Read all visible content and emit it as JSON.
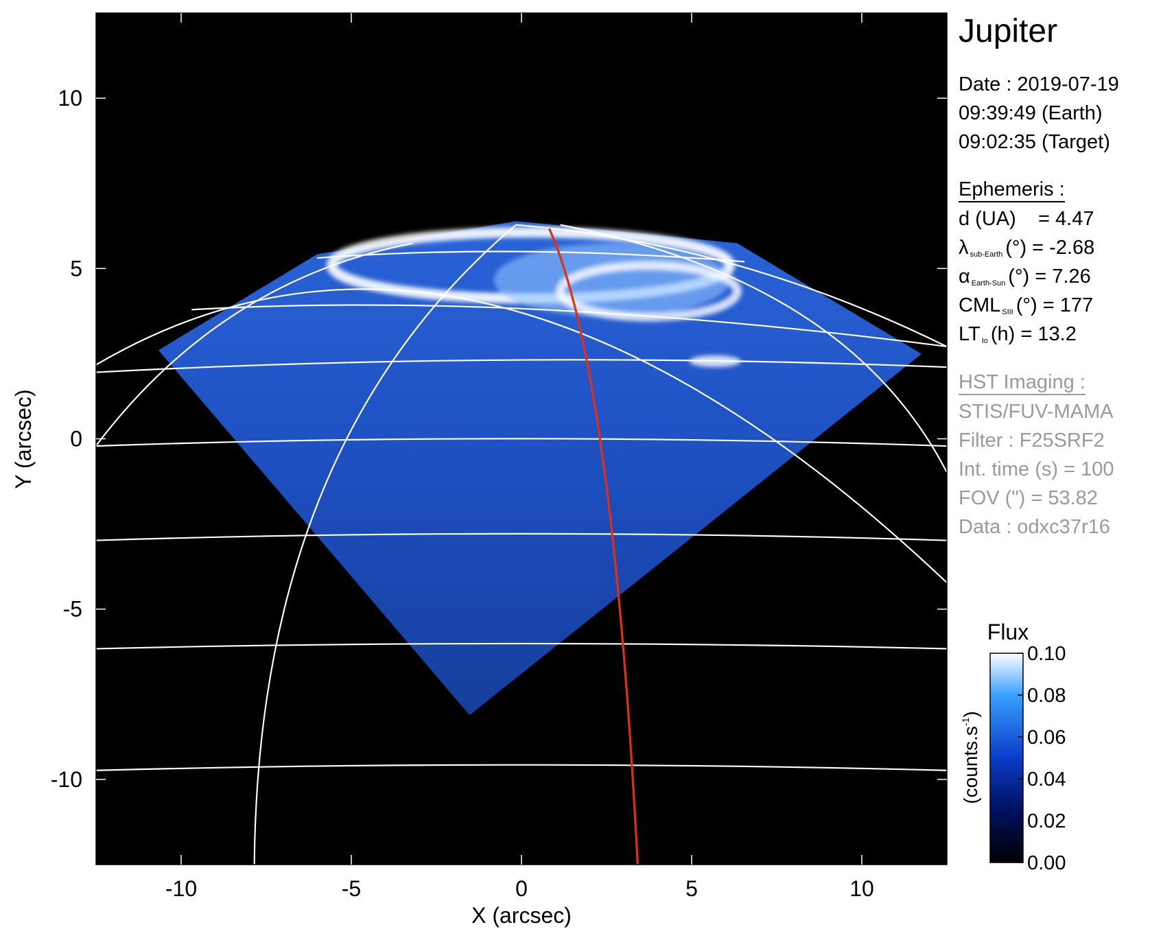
{
  "chart_data": {
    "type": "image",
    "title": "Jupiter",
    "xlabel": "X (arcsec)",
    "ylabel": "Y (arcsec)",
    "xlim": [
      -12.5,
      12.5
    ],
    "ylim": [
      -12.5,
      12.5
    ],
    "xticks": [
      -10,
      -5,
      0,
      5,
      10
    ],
    "yticks": [
      -10,
      -5,
      0,
      5,
      10
    ],
    "info": [
      "Date : 2019-07-19",
      "09:39:49 (Earth)",
      "09:02:35 (Target)"
    ],
    "ephemeris": {
      "heading": "Ephemeris :",
      "items": [
        {
          "main": "d (UA)    = 4.47"
        },
        {
          "main": "λ",
          "sub": "sub-Earth",
          "rest": "(°) = -2.68"
        },
        {
          "main": "α",
          "sub": "Earth-Sun",
          "rest": "(°) = 7.26"
        },
        {
          "main": "CML",
          "sub": "SIII",
          "rest": "(°) = 177"
        },
        {
          "main": "LT",
          "sub": "Io",
          "rest": "(h) = 13.2"
        }
      ]
    },
    "imaging": {
      "heading": "HST Imaging :",
      "items": [
        "STIS/FUV-MAMA",
        "Filter : F25SRF2",
        "Int. time (s) = 100",
        "FOV (\") = 53.82",
        "Data : odxc37r16"
      ]
    },
    "colorbar": {
      "label": "Flux",
      "unit": [
        "(counts.s",
        "-1",
        ")"
      ],
      "clim": [
        0,
        0.1
      ],
      "ticks": [
        {
          "value": 0,
          "label": "0.00"
        },
        0.02,
        0.04,
        0.06,
        0.08,
        {
          "value": 0.1,
          "label": "0.10"
        }
      ]
    }
  }
}
